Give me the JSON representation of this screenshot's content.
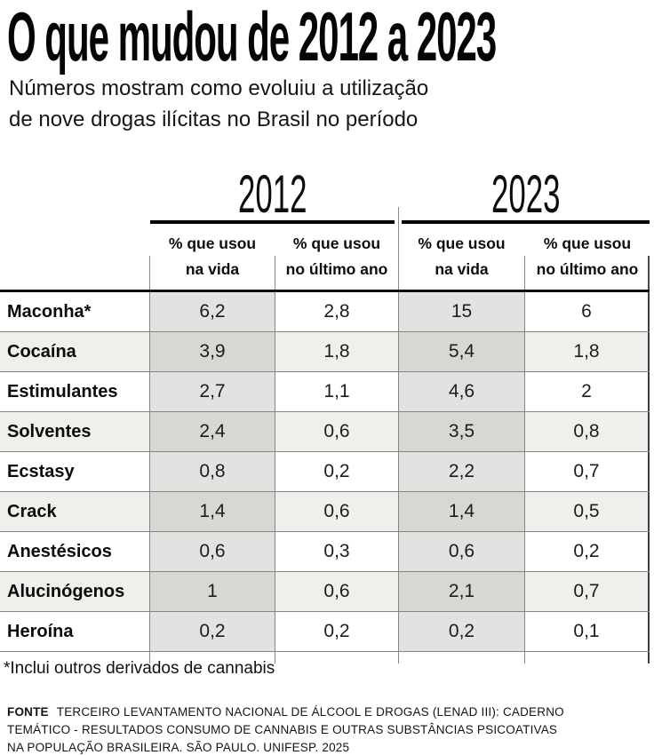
{
  "chart_data": {
    "type": "table",
    "title": "O que mudou de 2012 a 2023",
    "subtitle_lines": [
      "Números mostram como evoluiu a utilização",
      "de nove drogas ilícitas no Brasil no período"
    ],
    "year_groups": [
      {
        "label": "2012"
      },
      {
        "label": "2023"
      }
    ],
    "columns": [
      {
        "year": "2012",
        "line1": "% que usou",
        "line2": "na vida"
      },
      {
        "year": "2012",
        "line1": "% que usou",
        "line2": "no último ano"
      },
      {
        "year": "2023",
        "line1": "% que usou",
        "line2": "na vida"
      },
      {
        "year": "2023",
        "line1": "% que usou",
        "line2": "no último ano"
      }
    ],
    "rows": [
      {
        "label": "Maconha*",
        "values": [
          "6,2",
          "2,8",
          "15",
          "6"
        ]
      },
      {
        "label": "Cocaína",
        "values": [
          "3,9",
          "1,8",
          "5,4",
          "1,8"
        ]
      },
      {
        "label": "Estimulantes",
        "values": [
          "2,7",
          "1,1",
          "4,6",
          "2"
        ]
      },
      {
        "label": "Solventes",
        "values": [
          "2,4",
          "0,6",
          "3,5",
          "0,8"
        ]
      },
      {
        "label": "Ecstasy",
        "values": [
          "0,8",
          "0,2",
          "2,2",
          "0,7"
        ]
      },
      {
        "label": "Crack",
        "values": [
          "1,4",
          "0,6",
          "1,4",
          "0,5"
        ]
      },
      {
        "label": "Anestésicos",
        "values": [
          "0,6",
          "0,3",
          "0,6",
          "0,2"
        ]
      },
      {
        "label": "Alucinógenos",
        "values": [
          "1",
          "0,6",
          "2,1",
          "0,7"
        ]
      },
      {
        "label": "Heroína",
        "values": [
          "0,2",
          "0,2",
          "0,2",
          "0,1"
        ]
      }
    ],
    "footnote": "*Inclui outros derivados de cannabis",
    "source": {
      "label": "FONTE",
      "lines": [
        "TERCEIRO LEVANTAMENTO NACIONAL DE ÁLCOOL E DROGAS (LENAD III): CADERNO",
        "TEMÁTICO - RESULTADOS CONSUMO DE CANNABIS E OUTRAS SUBSTÂNCIAS PSICOATIVAS",
        "NA POPULAÇÃO BRASILEIRA. SÃO PAULO. UNIFESP. 2025"
      ]
    },
    "colors": {
      "shaded_column": "#e2e2e0",
      "shaded_column_on_tinted_row": "#d8d7d1",
      "tinted_row": "#f0efeb",
      "thin_border": "#858585",
      "thick_border": "#0b0b0b"
    },
    "layout": {
      "grid": "on",
      "legend": "none",
      "value_format": "pt-BR comma decimals"
    }
  }
}
